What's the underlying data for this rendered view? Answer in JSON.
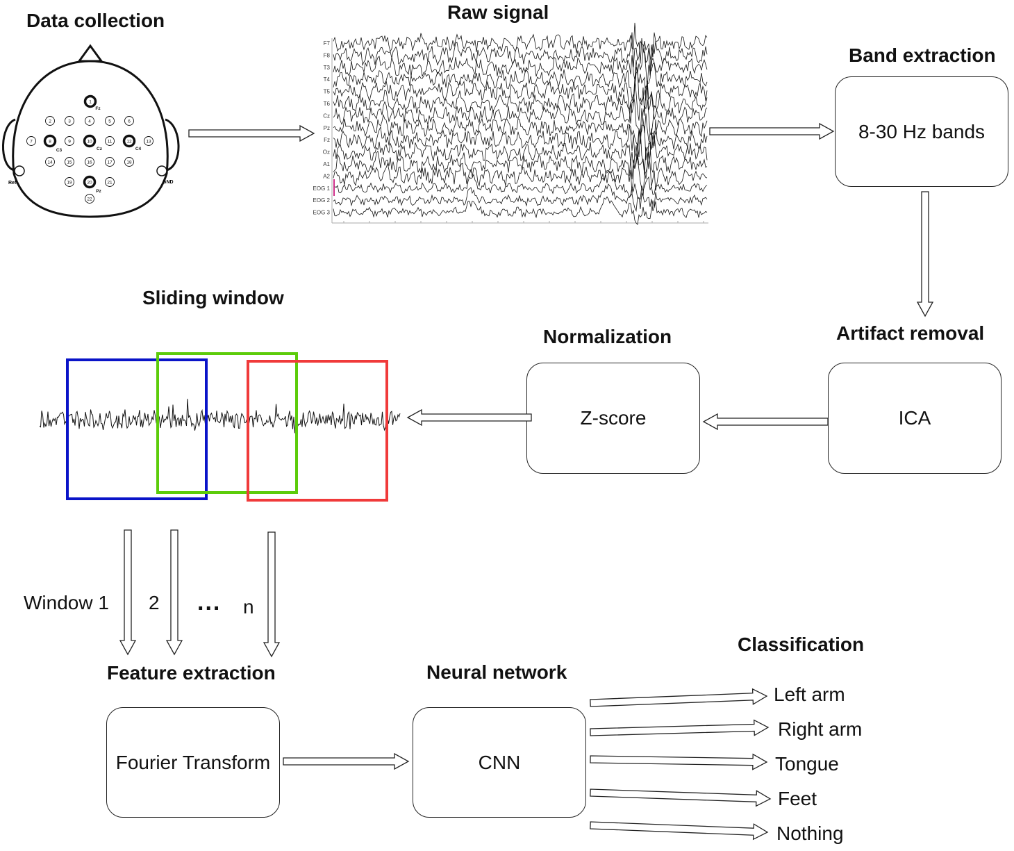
{
  "headings": {
    "data_collection": "Data collection",
    "raw_signal": "Raw signal",
    "band_extraction": "Band extraction",
    "artifact_removal": "Artifact removal",
    "normalization": "Normalization",
    "sliding_window": "Sliding window",
    "feature_extraction": "Feature extraction",
    "neural_network": "Neural network",
    "classification": "Classification"
  },
  "boxes": {
    "band": "8-30 Hz bands",
    "ica": "ICA",
    "zscore": "Z-score",
    "fourier": "Fourier Transform",
    "cnn": "CNN"
  },
  "windows": {
    "w1": "Window 1",
    "w2": "2",
    "dots": "...",
    "wn": "n"
  },
  "classes": [
    "Left arm",
    "Right arm",
    "Tongue",
    "Feet",
    "Nothing"
  ],
  "raw_channels": [
    "F7",
    "F8",
    "T3",
    "T4",
    "T5",
    "T6",
    "Cz",
    "Pz",
    "Fz",
    "Oz",
    "A1",
    "A2",
    "EOG 1",
    "EOG 2",
    "EOG 3"
  ],
  "electrodes": {
    "ref": "Ref.",
    "gnd": "GND",
    "numbers": [
      "1",
      "2",
      "3",
      "4",
      "5",
      "6",
      "7",
      "8",
      "9",
      "10",
      "11",
      "12",
      "13",
      "14",
      "15",
      "16",
      "17",
      "18",
      "19",
      "20",
      "21",
      "22"
    ],
    "names": [
      "Fz",
      "C3",
      "Cz",
      "C4",
      "Pz"
    ]
  },
  "colors": {
    "win1": "#0a14c8",
    "win2": "#5ccc0a",
    "win3": "#f03a3a",
    "marker": "#d0308a"
  }
}
